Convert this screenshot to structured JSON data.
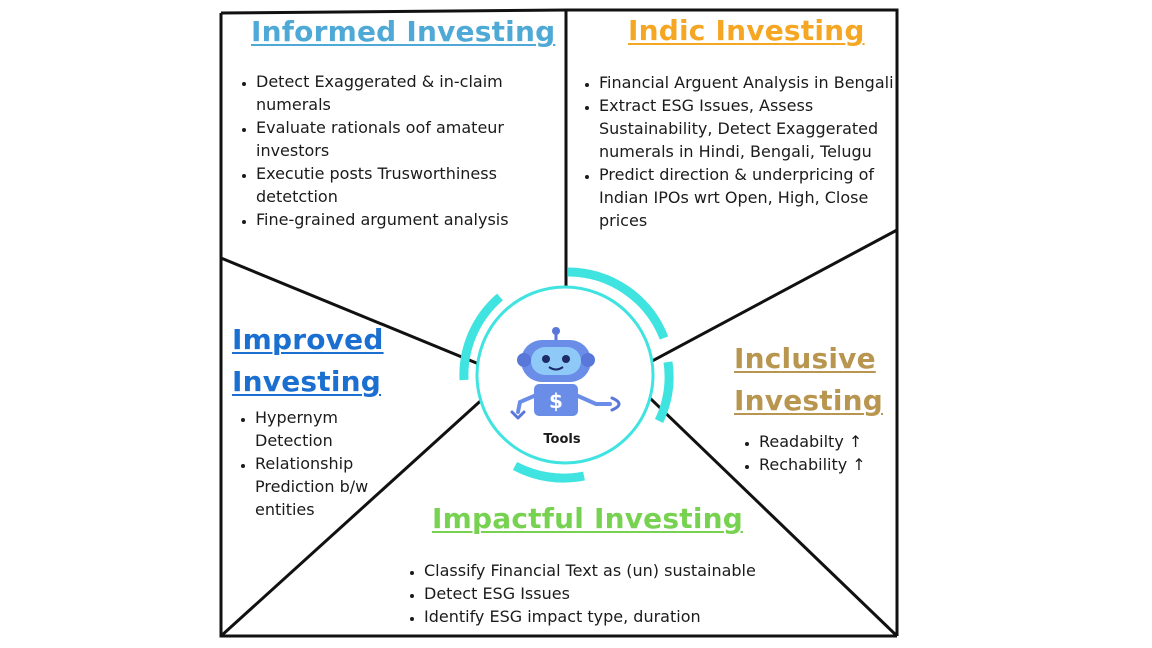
{
  "sections": {
    "informed": {
      "title": "Informed Investing",
      "items": [
        "Detect Exaggerated & in-claim numerals",
        "Evaluate rationals oof amateur investors",
        "Executie posts Trusworthiness detetction",
        "Fine-grained argument analysis"
      ]
    },
    "indic": {
      "title": "Indic Investing",
      "items": [
        "Financial Arguent Analysis in Bengali",
        "Extract ESG Issues, Assess Sustainability, Detect Exaggerated numerals in Hindi, Bengali, Telugu",
        "Predict direction & underpricing of Indian IPOs wrt Open, High, Close prices"
      ]
    },
    "improved": {
      "title_line1": "Improved",
      "title_line2": "Investing",
      "items": [
        "Hypernym Detection",
        "Relationship Prediction b/w entities"
      ]
    },
    "inclusive": {
      "title_line1": "Inclusive",
      "title_line2": "Investing",
      "items": [
        "Readabilty ↑",
        "Rechability ↑"
      ]
    },
    "impactful": {
      "title": "Impactful Investing",
      "items": [
        "Classify Financial Text as (un) sustainable",
        "Detect ESG Issues",
        "Identify ESG impact type, duration"
      ]
    }
  },
  "center": {
    "label": "Tools",
    "icon": "robot-dollar-icon"
  },
  "colors": {
    "informed": "#4fa9d6",
    "indic": "#f5a623",
    "improved": "#1a6fd0",
    "inclusive": "#b99650",
    "impactful": "#78d251",
    "ring": "#3fe3e0",
    "robot": "#6a8ee8"
  }
}
